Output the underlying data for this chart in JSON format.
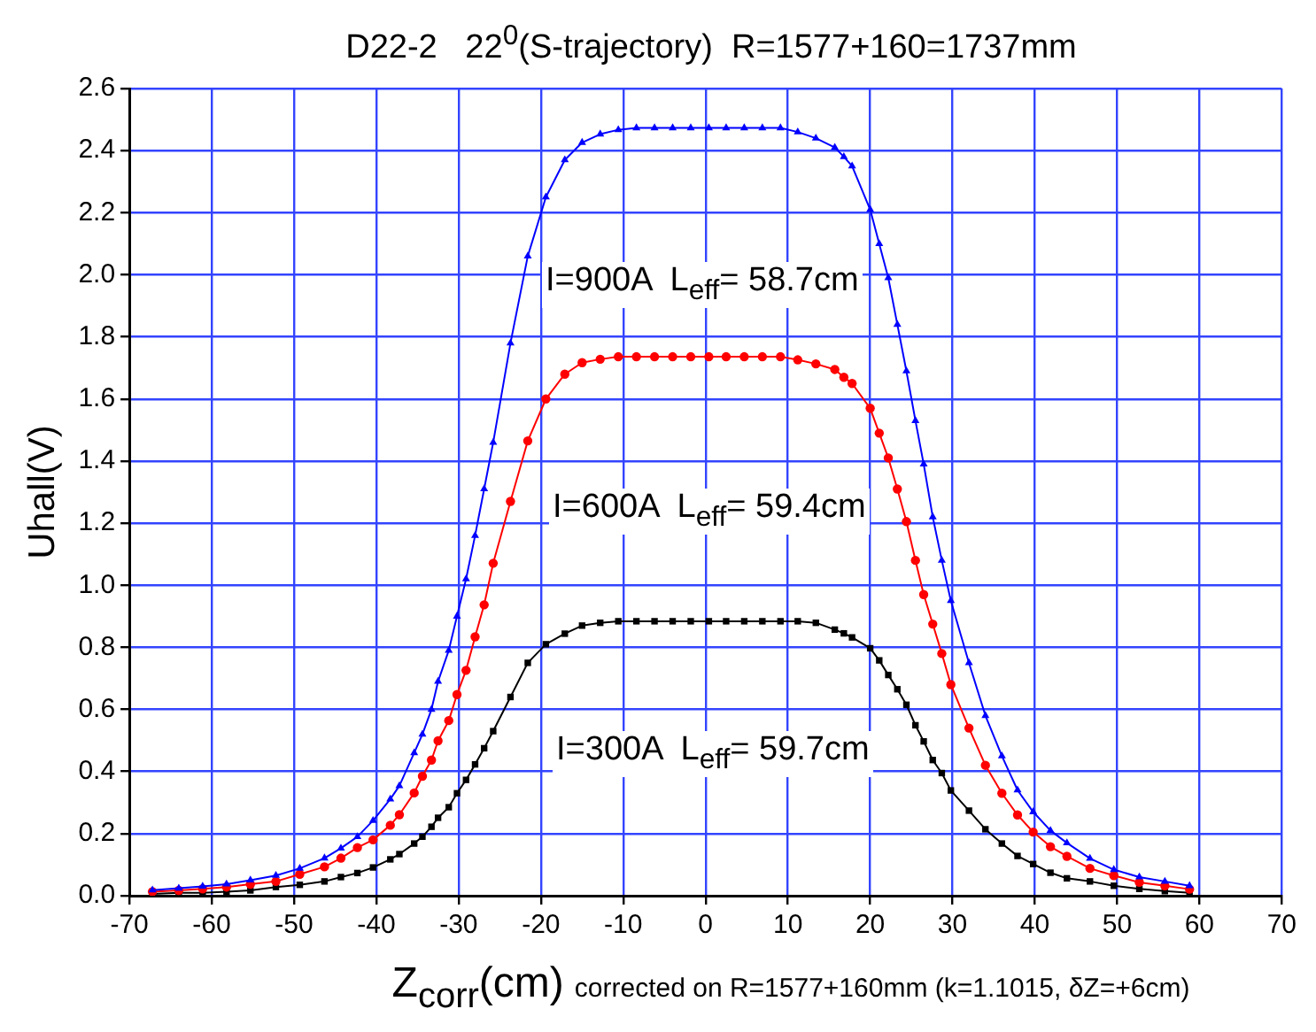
{
  "chart_data": {
    "type": "line",
    "title": "D22-2   22$^{0}$(S-trajectory)  R=1577+160=1737mm",
    "xlabel": "Z$_{corr}$(cm)",
    "ylabel": "Uhall(V)",
    "annotations": [
      "I=900A  L$_{eff}$= 58.7cm",
      "I=600A  L$_{eff}$= 59.4cm",
      "I=300A  L$_{eff}$= 59.7cm",
      "corrected on R=1577+160mm (k=1.1015, δZ=+6cm)"
    ],
    "x": [
      -67.2,
      -64.0,
      -61.1,
      -58.2,
      -55.3,
      -52.2,
      -49.3,
      -46.3,
      -44.3,
      -42.3,
      -40.4,
      -38.3,
      -37.2,
      -35.4,
      -34.4,
      -33.3,
      -32.5,
      -31.2,
      -30.2,
      -29.1,
      -28.0,
      -26.9,
      -25.8,
      -23.7,
      -21.6,
      -19.4,
      -17.1,
      -15.0,
      -12.8,
      -10.6,
      -8.4,
      -6.2,
      -4.0,
      -1.8,
      0.4,
      2.5,
      4.7,
      6.9,
      9.1,
      11.2,
      13.4,
      15.7,
      16.8,
      17.8,
      20.0,
      21.1,
      22.2,
      23.3,
      24.4,
      25.5,
      26.5,
      27.6,
      28.7,
      29.8,
      32.0,
      34.0,
      36.0,
      37.9,
      39.8,
      41.9,
      43.9,
      46.7,
      49.6,
      52.7,
      55.8,
      58.8
    ],
    "series": [
      {
        "color": "#0000ff",
        "marker": "triangle",
        "values": [
          0.018,
          0.024,
          0.03,
          0.037,
          0.05,
          0.065,
          0.088,
          0.121,
          0.153,
          0.19,
          0.242,
          0.311,
          0.354,
          0.46,
          0.52,
          0.6,
          0.69,
          0.79,
          0.9,
          1.02,
          1.16,
          1.31,
          1.46,
          1.78,
          2.06,
          2.25,
          2.37,
          2.426,
          2.453,
          2.467,
          2.473,
          2.473,
          2.473,
          2.473,
          2.473,
          2.473,
          2.473,
          2.473,
          2.473,
          2.46,
          2.44,
          2.41,
          2.38,
          2.35,
          2.21,
          2.1,
          1.99,
          1.84,
          1.69,
          1.53,
          1.39,
          1.22,
          1.08,
          0.95,
          0.75,
          0.58,
          0.45,
          0.34,
          0.27,
          0.21,
          0.17,
          0.12,
          0.084,
          0.06,
          0.046,
          0.032
        ]
      },
      {
        "color": "#ff0000",
        "marker": "circle",
        "values": [
          0.013,
          0.017,
          0.022,
          0.028,
          0.037,
          0.046,
          0.069,
          0.093,
          0.121,
          0.155,
          0.18,
          0.227,
          0.261,
          0.331,
          0.385,
          0.437,
          0.499,
          0.564,
          0.648,
          0.726,
          0.834,
          0.937,
          1.071,
          1.27,
          1.465,
          1.6,
          1.68,
          1.717,
          1.728,
          1.736,
          1.736,
          1.736,
          1.736,
          1.736,
          1.736,
          1.736,
          1.736,
          1.736,
          1.736,
          1.726,
          1.713,
          1.695,
          1.67,
          1.65,
          1.57,
          1.49,
          1.41,
          1.31,
          1.205,
          1.08,
          0.97,
          0.875,
          0.78,
          0.68,
          0.54,
          0.42,
          0.33,
          0.26,
          0.205,
          0.158,
          0.127,
          0.088,
          0.065,
          0.043,
          0.032,
          0.021
        ]
      },
      {
        "color": "#000000",
        "marker": "square",
        "values": [
          0.006,
          0.009,
          0.009,
          0.013,
          0.017,
          0.028,
          0.035,
          0.046,
          0.06,
          0.073,
          0.091,
          0.117,
          0.134,
          0.168,
          0.19,
          0.222,
          0.251,
          0.285,
          0.33,
          0.373,
          0.423,
          0.475,
          0.53,
          0.64,
          0.75,
          0.81,
          0.844,
          0.87,
          0.879,
          0.884,
          0.884,
          0.884,
          0.884,
          0.884,
          0.884,
          0.884,
          0.884,
          0.884,
          0.884,
          0.884,
          0.879,
          0.857,
          0.845,
          0.832,
          0.797,
          0.758,
          0.711,
          0.665,
          0.615,
          0.549,
          0.497,
          0.437,
          0.395,
          0.339,
          0.274,
          0.214,
          0.168,
          0.128,
          0.102,
          0.074,
          0.056,
          0.046,
          0.032,
          0.022,
          0.015,
          0.009
        ]
      }
    ],
    "xlim": [
      -70,
      70
    ],
    "xticks": [
      -70,
      -60,
      -50,
      -40,
      -30,
      -20,
      -10,
      0,
      10,
      20,
      30,
      40,
      50,
      60,
      70
    ],
    "ylim": [
      0,
      2.6
    ],
    "yticks": [
      {
        "value": 0,
        "label": "0.0"
      },
      0.2,
      0.4,
      0.6,
      0.8,
      {
        "value": 1,
        "label": "1.0"
      },
      1.2,
      1.4,
      1.6,
      1.8,
      {
        "value": 2,
        "label": "2.0"
      },
      2.2,
      2.4,
      2.6
    ],
    "grid": true,
    "legend": false,
    "line_style": "solid"
  }
}
